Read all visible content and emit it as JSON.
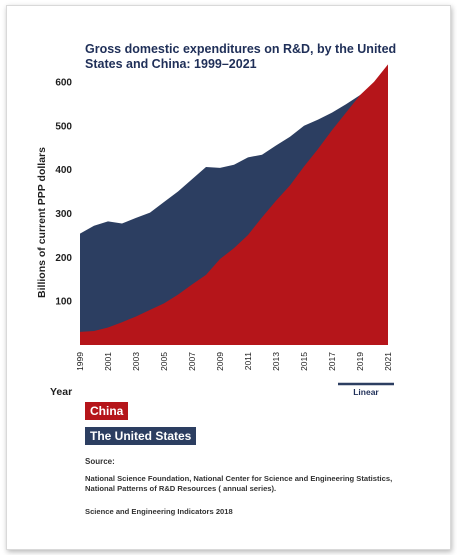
{
  "chart_data": {
    "type": "area",
    "title": "Gross domestic expenditures on R&D, by the United States and China: 1999–2021",
    "xlabel": "Year",
    "ylabel": "Billions of current PPP dollars",
    "x": [
      1999,
      2000,
      2001,
      2002,
      2003,
      2004,
      2005,
      2006,
      2007,
      2008,
      2009,
      2010,
      2011,
      2012,
      2013,
      2014,
      2015,
      2016,
      2017,
      2018,
      2019,
      2020,
      2021
    ],
    "xlim": [
      1999,
      2021
    ],
    "ylim": [
      0,
      650
    ],
    "x_ticks": [
      "1999",
      "2001",
      "2003",
      "2005",
      "2007",
      "2009",
      "2011",
      "2013",
      "2015",
      "2017",
      "2019",
      "2021"
    ],
    "y_ticks": [
      100,
      200,
      300,
      400,
      500,
      600
    ],
    "series": [
      {
        "name": "The United States",
        "color": "#2c3e61",
        "values": [
          254,
          272,
          282,
          277,
          290,
          302,
          326,
          350,
          378,
          406,
          404,
          411,
          428,
          434,
          455,
          475,
          500,
          514,
          530,
          549,
          570,
          590,
          600
        ]
      },
      {
        "name": "China",
        "color": "#b5151a",
        "values": [
          30,
          32,
          40,
          52,
          65,
          80,
          95,
          115,
          138,
          160,
          196,
          221,
          251,
          291,
          329,
          364,
          407,
          447,
          490,
          530,
          570,
          600,
          640
        ]
      }
    ],
    "linear_segment": {
      "label": "Linear",
      "from": 2019,
      "to": 2021
    },
    "legend_position": "bottom-left",
    "grid": false
  },
  "legend": {
    "china": "China",
    "us": "The United States"
  },
  "source": {
    "label": "Source:",
    "text": "National Science Foundation, National Center for Science and Engineering Statistics, National Patterns of R&D Resources ( annual series).",
    "indicators": "Science and Engineering Indicators 2018"
  }
}
